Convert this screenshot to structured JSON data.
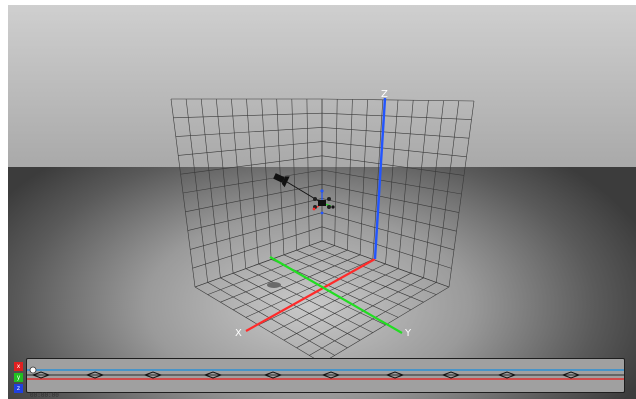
{
  "scene": {
    "axes": {
      "x_label": "X",
      "y_label": "Y",
      "z_label": "Z",
      "x_color": "#ff2a2a",
      "y_color": "#22dd22",
      "z_color": "#2255ff"
    },
    "grid_color": "#3a3a3a",
    "object_icon": "drone-quadcopter-icon",
    "camera_icon": "spotlight-camera-icon"
  },
  "timeline": {
    "tracks": [
      {
        "label": "x",
        "color": "#e02020"
      },
      {
        "label": "y",
        "color": "#20c020"
      },
      {
        "label": "z",
        "color": "#2040e0"
      }
    ],
    "curve_colors": [
      "#2a8fd6",
      "#e03030",
      "#2a2a2a"
    ],
    "keyframe_icon": "keyframe-diamond-icon",
    "playhead_icon": "playhead-circle-icon",
    "time_readout": "00:00:00"
  }
}
